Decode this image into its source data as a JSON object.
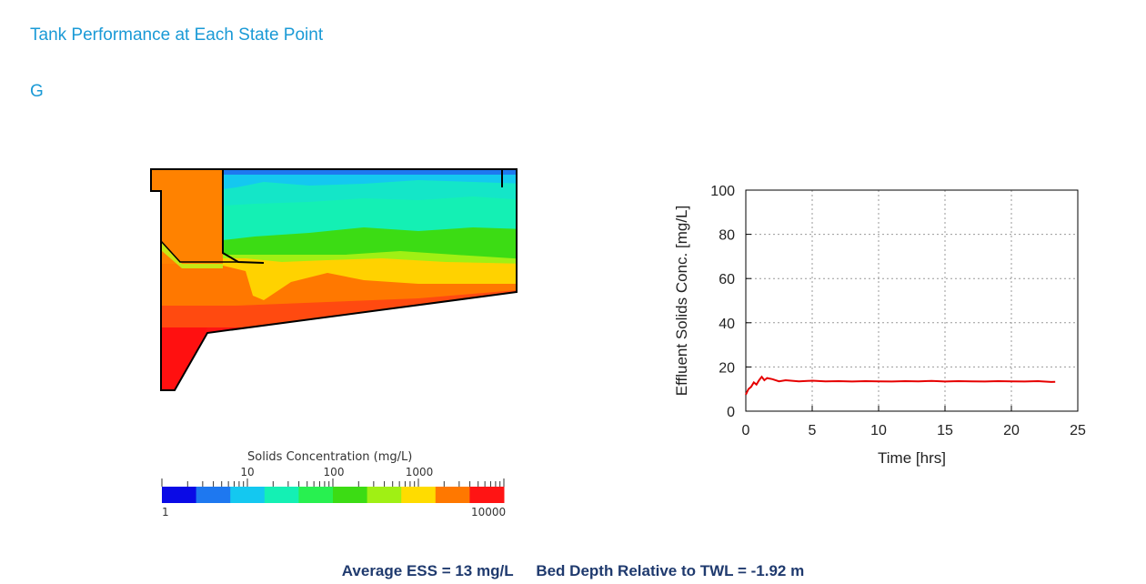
{
  "page": {
    "title": "Tank Performance at Each State Point",
    "section": "G"
  },
  "legend": {
    "title": "Solids Concentration (mg/L)",
    "major_ticks": [
      "10",
      "100",
      "1000"
    ],
    "min_label": "1",
    "max_label": "10000",
    "colors": [
      "#0a0ae6",
      "#1e78f0",
      "#14c8f0",
      "#14f0b4",
      "#28f050",
      "#3cdc14",
      "#a0f014",
      "#ffdc00",
      "#ff7800",
      "#ff1414"
    ]
  },
  "chart_data": {
    "type": "line",
    "title": "",
    "xlabel": "Time [hrs]",
    "ylabel": "Effluent Solids Conc. [mg/L]",
    "xlim": [
      0,
      25
    ],
    "ylim": [
      0,
      100
    ],
    "xticks": [
      "0",
      "5",
      "10",
      "15",
      "20",
      "25"
    ],
    "yticks": [
      "0",
      "20",
      "40",
      "60",
      "80",
      "100"
    ],
    "grid": true,
    "series": [
      {
        "color": "#e60000",
        "x": [
          0,
          0.2,
          0.4,
          0.6,
          0.8,
          1.0,
          1.2,
          1.4,
          1.6,
          2.0,
          2.5,
          3,
          4,
          5,
          6,
          7,
          8,
          9,
          10,
          11,
          12,
          13,
          14,
          15,
          16,
          17,
          18,
          19,
          20,
          21,
          22,
          23,
          23.3
        ],
        "y": [
          7.5,
          10,
          11,
          13,
          12,
          14,
          15.5,
          14,
          15,
          14.5,
          13.5,
          14,
          13.5,
          13.8,
          13.5,
          13.6,
          13.4,
          13.6,
          13.5,
          13.4,
          13.6,
          13.5,
          13.7,
          13.4,
          13.6,
          13.5,
          13.4,
          13.6,
          13.5,
          13.4,
          13.6,
          13.2,
          13.3
        ]
      }
    ]
  },
  "footer": {
    "ess": "Average ESS = 13 mg/L",
    "bed_depth": "Bed Depth Relative to TWL = -1.92 m"
  }
}
